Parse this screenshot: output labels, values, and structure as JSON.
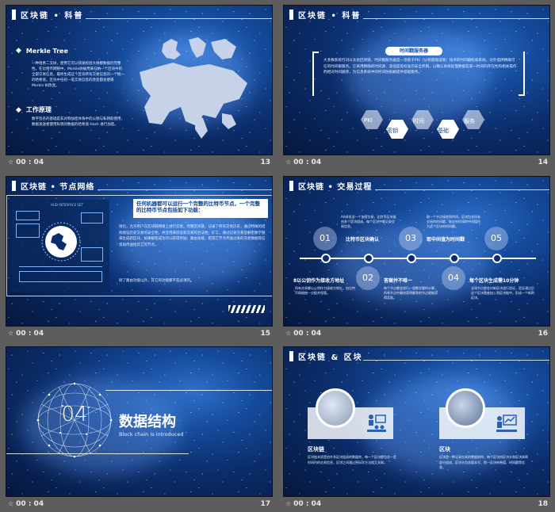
{
  "slides": [
    {
      "number": "13",
      "time": "00 : 04",
      "title": "区块链 • 科普",
      "sections": [
        {
          "heading": "Merkle Tree",
          "text": "一种哈希二叉树，使用它可以快速校验大规模数据的完整性。在比特币网络中，Merkle树被用来归纳一个区块中的全部交易信息，最终生成这个区块所有交易信息的一个统一的哈希值，区块中任何一笔交易信息的改变都会使得 Merkle 树改变。"
        },
        {
          "heading": "工作原理",
          "text": "数字签名的基础是非对称加密体系中的公钥与私钥的使用，数据发送者使用私钥对数据的哈希值 Hash 进行加密。"
        }
      ]
    },
    {
      "number": "14",
      "time": "00 : 04",
      "title": "区块链 • 科普",
      "box_label": "时间戳服务器",
      "box_text": "大多数系统行对以太坊区块链、时间戳服务器是一项基于PKI（公钥基础设施）技术的时间戳权威系统，对外提供精确可信的时间戳服务。它采用精确的时间源、高强度高标准的安全机制，以确认系统处理数据在某一时间的存在性和相关操作的相对时间顺序，为信息系统中的时间防抵赖提供基础服务。",
      "hexagons": [
        "PKI",
        "密钥",
        "时间",
        "基础",
        "服务"
      ]
    },
    {
      "number": "15",
      "time": "00 : 04",
      "title": "区块链 • 节点网络",
      "hud_label": "HUD INTERFACE SET",
      "headline": "任何机器都可以运行一个完整的比特币节点，一个完整的比特币节点包括如下功能：",
      "body": "钱包，允许用户在区块链网络上进行交易。完整区块链，记录了所有交易历史，通过特殊的结构保证历史交易的安全性，并且用来验证新交易的合法性；矿工，通过记录交易及解密数学题来生成新区块，如果解密成功可以获得奖励；路由功能，把其它节点传送过来的交易数据等信息再传送给其它的节点。",
      "footnote": "除了路由功能以外，其它的功能都不是必须的。"
    },
    {
      "number": "16",
      "time": "00 : 04",
      "title": "区块链 • 交易过程",
      "steps": [
        {
          "num": "01",
          "label": "比特币区块确认",
          "desc": "A向B发送一个加密交易，比特币区块链由多个区块组成，每个区块中都记录交易信息。"
        },
        {
          "num": "02",
          "label": "答案并不唯一",
          "desc": "每个节点都会进行一道数学题的计算，所有节点中最快获得解答的节点就能获得奖励。"
        },
        {
          "num": "03",
          "label": "取中间值为时间戳",
          "desc": "取一个节点接收到时间，区块包含所有交易的时间戳，取这些时间的中间值作为这个区块的时间戳。"
        },
        {
          "num": "04",
          "label": "每个区块生成需10分钟",
          "desc": "全网节点都会对新区块进行验证，验证通过后这个区块就被加入到区块链中，形成一个新的区块。"
        },
        {
          "num": "05",
          "label": ""
        }
      ],
      "left_label": "8以公钥作为接收方地址",
      "left_desc": "所有交易都以公钥作为接收方地址，由比特币网络统一分配并保管。"
    },
    {
      "number": "17",
      "time": "00 : 04",
      "section_num": "04",
      "section_title": "数据结构",
      "section_sub": "Block chain is introduced"
    },
    {
      "number": "18",
      "time": "00 : 04",
      "title": "区块链 & 区块",
      "cards": [
        {
          "label": "区块链",
          "text": "区块链本质是由许多区块组成的数据库，每一个区块都包含一定时间内的交易信息，区块之间通过密码学方法相互关联。"
        },
        {
          "label": "区块",
          "text": "区块是一种记录交易的数据结构，每个区块由区块头和区块体两部分组成，区块头包含版本号、前一区块哈希值、时间戳等信息。"
        }
      ]
    }
  ]
}
